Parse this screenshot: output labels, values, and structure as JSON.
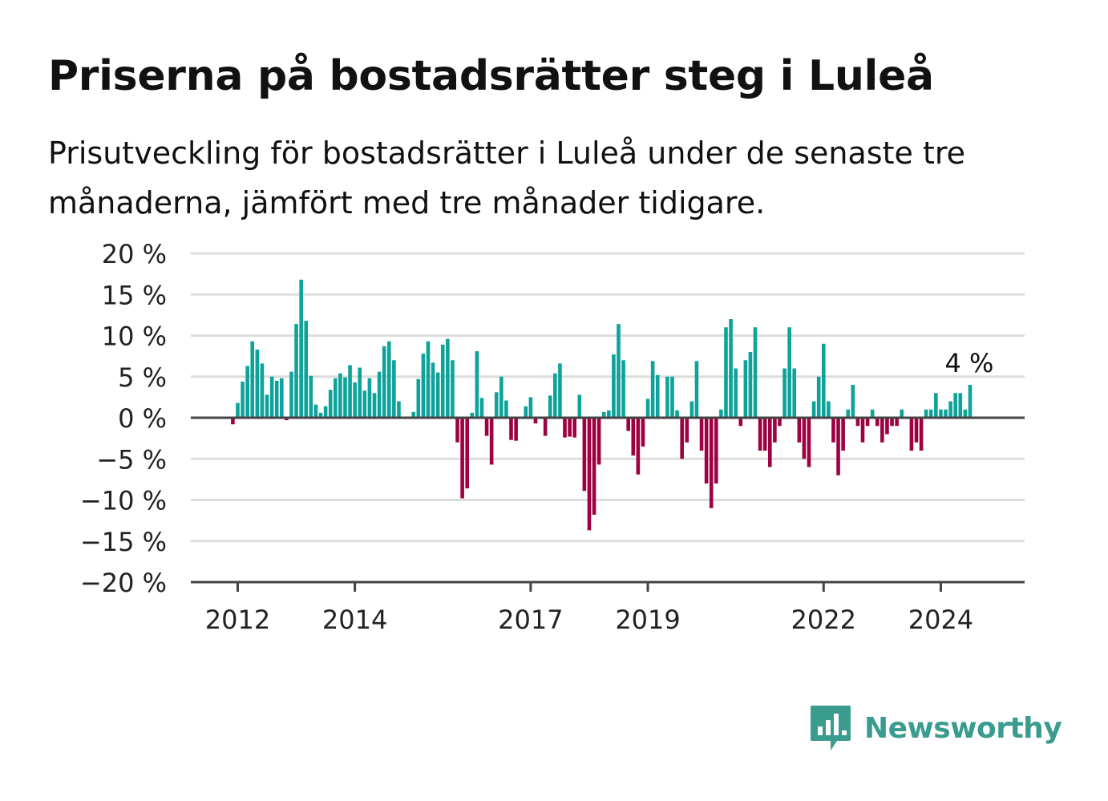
{
  "title": "Priserna på bostadsrätter steg i Luleå",
  "subtitle": "Prisutveckling för bostadsrätter i Luleå under de senaste tre månaderna, jämfört med tre månader tidigare.",
  "brand": {
    "name": "Newsworthy",
    "color": "#3a9b8f",
    "icon": "newsworthy-bar-chart-icon"
  },
  "colors": {
    "positive": "#0ea39a",
    "negative": "#9e0142",
    "grid": "#dddddd",
    "axis": "#444444"
  },
  "chart_data": {
    "type": "bar",
    "title": "",
    "xlabel": "",
    "ylabel": "",
    "ylim": [
      -20,
      20
    ],
    "yticks": [
      20,
      15,
      10,
      5,
      0,
      -5,
      -10,
      -15,
      -20
    ],
    "ytick_labels": [
      "20 %",
      "15 %",
      "10 %",
      "5 %",
      "0 %",
      "−5 %",
      "−10 %",
      "−15 %",
      "−20 %"
    ],
    "xticks": [
      {
        "label": "2012",
        "year": 2012
      },
      {
        "label": "2014",
        "year": 2014
      },
      {
        "label": "2017",
        "year": 2017
      },
      {
        "label": "2019",
        "year": 2019
      },
      {
        "label": "2022",
        "year": 2022
      },
      {
        "label": "2024",
        "year": 2024
      }
    ],
    "x_start": "2011-11",
    "interval": "month",
    "values": [
      0,
      -0.8,
      1.8,
      4.4,
      6.3,
      9.3,
      8.3,
      6.6,
      2.8,
      5.0,
      4.5,
      4.8,
      -0.3,
      5.6,
      11.4,
      16.8,
      11.8,
      5.1,
      1.6,
      0.6,
      1.4,
      3.4,
      4.8,
      5.4,
      4.9,
      6.4,
      4.3,
      6.1,
      3.3,
      4.8,
      3.0,
      5.6,
      8.7,
      9.3,
      7.0,
      2.0,
      0,
      0,
      0.7,
      4.7,
      7.8,
      9.3,
      6.7,
      5.5,
      8.9,
      9.6,
      7.0,
      -3.0,
      -9.8,
      -8.6,
      0.6,
      8.1,
      2.4,
      -2.2,
      -5.7,
      3.1,
      5.0,
      2.1,
      -2.7,
      -2.8,
      0,
      1.4,
      2.5,
      -0.7,
      0,
      -2.2,
      2.7,
      5.4,
      6.6,
      -2.4,
      -2.3,
      -2.4,
      2.8,
      -8.9,
      -13.7,
      -11.8,
      -5.7,
      0.7,
      0.9,
      7.7,
      11.4,
      7.0,
      -1.6,
      -4.6,
      -6.9,
      -3.5,
      2.3,
      6.9,
      5.2,
      0,
      5.0,
      5.0,
      0.9,
      -5.0,
      -3.0,
      2.0,
      6.9,
      -4.0,
      -8.0,
      -11.0,
      -8.0,
      1.0,
      11.0,
      12.0,
      6.0,
      -1.0,
      7.0,
      8.0,
      11.0,
      -4.0,
      -4.0,
      -6.0,
      -3.0,
      -1.0,
      6.0,
      11.0,
      6.0,
      -3.0,
      -5.0,
      -6.0,
      2.0,
      5.0,
      9.0,
      2.0,
      -3.0,
      -7.0,
      -4.0,
      1.0,
      4.0,
      -1.0,
      -3.0,
      -1.0,
      1.0,
      -1.0,
      -3.0,
      -2.0,
      -1.0,
      -1.0,
      1.0,
      0,
      -4.0,
      -3.0,
      -4.0,
      1.0,
      1.0,
      3.0,
      1.0,
      1.0,
      2.0,
      3.0,
      3.0,
      1.0,
      4.0
    ],
    "annotation": {
      "label": "4 %",
      "value": 4
    }
  }
}
